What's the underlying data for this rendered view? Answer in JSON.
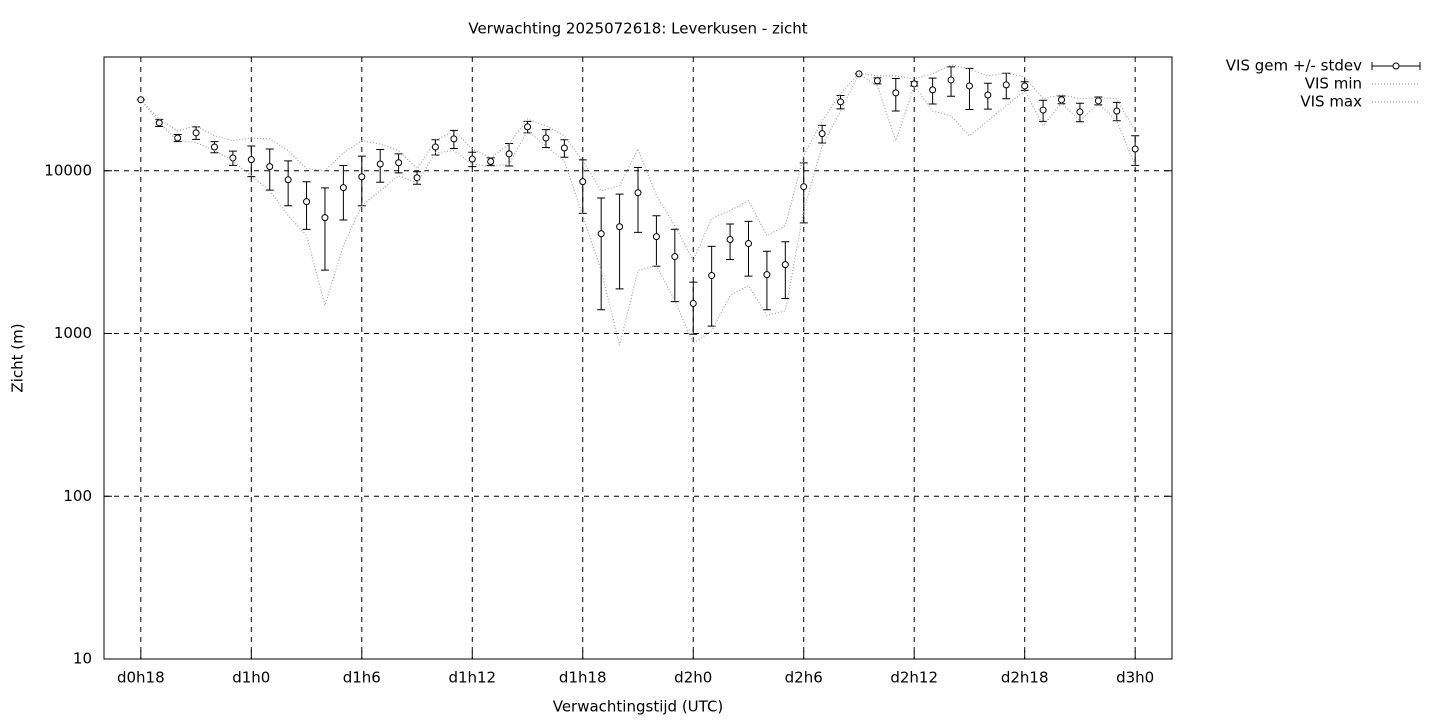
{
  "chart_data": {
    "type": "errorbar_line",
    "title": "Verwachting 2025072618: Leverkusen - zicht",
    "x_label": "Verwachtingstijd (UTC)",
    "y_label": "Zicht (m)",
    "log_y": true,
    "grid": true,
    "xlim": [
      16,
      74
    ],
    "xticks": [
      {
        "value": 18,
        "label": "d0h18"
      },
      {
        "value": 24,
        "label": "d1h0"
      },
      {
        "value": 30,
        "label": "d1h6"
      },
      {
        "value": 36,
        "label": "d1h12"
      },
      {
        "value": 42,
        "label": "d1h18"
      },
      {
        "value": 48,
        "label": "d2h0"
      },
      {
        "value": 54,
        "label": "d2h6"
      },
      {
        "value": 60,
        "label": "d2h12"
      },
      {
        "value": 66,
        "label": "d2h18"
      },
      {
        "value": 72,
        "label": "d3h0"
      }
    ],
    "ylim": [
      10,
      50000
    ],
    "yticks": [
      10,
      100,
      1000,
      10000
    ],
    "x": [
      18,
      19,
      20,
      21,
      22,
      23,
      24,
      25,
      26,
      27,
      28,
      29,
      30,
      31,
      32,
      33,
      34,
      35,
      36,
      37,
      38,
      39,
      40,
      41,
      42,
      43,
      44,
      45,
      46,
      47,
      48,
      49,
      50,
      51,
      52,
      53,
      54,
      55,
      56,
      57,
      58,
      59,
      60,
      61,
      62,
      63,
      64,
      65,
      66,
      67,
      68,
      69,
      70,
      71,
      72
    ],
    "series": [
      {
        "name": "VIS gem +/- stdev",
        "color": "#000000",
        "style": "errorbars",
        "values": [
          27300,
          19700,
          15900,
          17100,
          14000,
          12000,
          11700,
          10600,
          8800,
          6460,
          5150,
          7880,
          9190,
          11000,
          11200,
          9060,
          14000,
          15700,
          11800,
          11400,
          12700,
          18600,
          15900,
          13800,
          8570,
          4100,
          4530,
          7330,
          3940,
          2970,
          1530,
          2270,
          3780,
          3570,
          2300,
          2650,
          7980,
          16900,
          26500,
          39400,
          35700,
          30100,
          34200,
          31400,
          36100,
          33200,
          29200,
          33700,
          33200,
          23600,
          27300,
          23000,
          26900,
          23300,
          13600
        ],
        "errors": [
          0,
          1000,
          800,
          1500,
          1100,
          1200,
          2500,
          3000,
          2700,
          2100,
          2700,
          2900,
          3100,
          2500,
          1500,
          800,
          1500,
          2000,
          1200,
          600,
          2000,
          1500,
          2000,
          1700,
          3100,
          2700,
          2650,
          3150,
          1350,
          1400,
          540,
          1160,
          930,
          1320,
          900,
          1010,
          3200,
          2100,
          2500,
          0,
          1500,
          6800,
          1000,
          5700,
          7400,
          9400,
          5300,
          6000,
          2000,
          3500,
          1500,
          3000,
          1500,
          3000,
          2800
        ]
      },
      {
        "name": "VIS min",
        "color": "#a0a0a0",
        "style": "dotted",
        "values": [
          27300,
          19700,
          15300,
          14900,
          13300,
          11500,
          9310,
          7540,
          5300,
          3990,
          1490,
          3470,
          6100,
          7540,
          9310,
          8440,
          12900,
          13300,
          11000,
          10600,
          11000,
          17600,
          14200,
          11500,
          5300,
          2440,
          844,
          2440,
          2610,
          1590,
          869,
          1040,
          1710,
          1970,
          1290,
          1380,
          5690,
          14200,
          23300,
          39400,
          33200,
          15300,
          33200,
          23300,
          21800,
          16400,
          20300,
          25100,
          31000,
          18900,
          26100,
          20300,
          25800,
          20300,
          10700
        ]
      },
      {
        "name": "VIS max",
        "color": "#a0a0a0",
        "style": "dotted",
        "values": [
          27300,
          20800,
          17600,
          18900,
          16400,
          15300,
          15900,
          15700,
          13300,
          10300,
          10000,
          12900,
          15300,
          14600,
          13300,
          10300,
          15300,
          17600,
          13600,
          12000,
          14600,
          20800,
          18900,
          16400,
          11500,
          7540,
          8090,
          13600,
          7030,
          4600,
          2810,
          5080,
          5690,
          6550,
          3990,
          4600,
          12400,
          20300,
          29700,
          39900,
          38300,
          38300,
          36700,
          39400,
          44700,
          42300,
          38300,
          39900,
          37700,
          27700,
          29300,
          27700,
          28100,
          27700,
          17600
        ]
      }
    ]
  }
}
